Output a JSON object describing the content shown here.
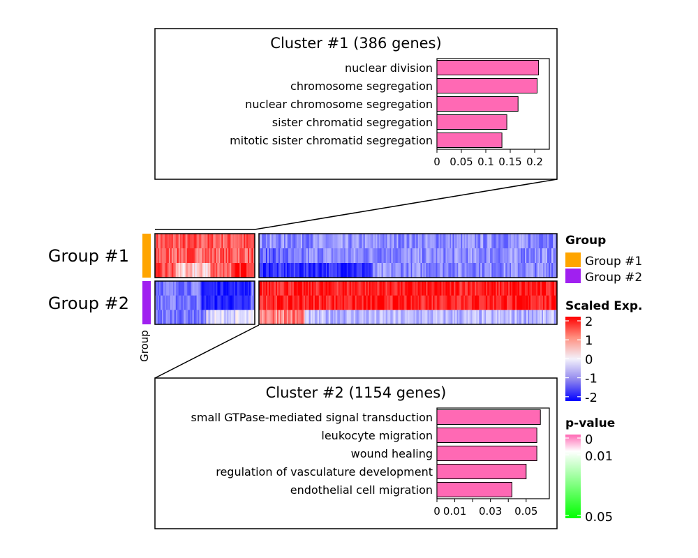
{
  "colors": {
    "group1": "#FFA500",
    "group2": "#A020F0",
    "bar": "#FF69B4",
    "high": "#FF0000",
    "mid": "#FFFFFF",
    "low": "#0000FF",
    "pvalue_low": "#FF69B4",
    "pvalue_high": "#00FF00"
  },
  "heatmap": {
    "row_labels": [
      "Group #1",
      "Group #2"
    ],
    "annotation_axis_label": "Group"
  },
  "legends": {
    "group": {
      "title": "Group",
      "items": [
        {
          "label": "Group #1",
          "color": "#FFA500"
        },
        {
          "label": "Group #2",
          "color": "#A020F0"
        }
      ]
    },
    "scaled_exp": {
      "title": "Scaled Exp.",
      "ticks": [
        "2",
        "1",
        "0",
        "-1",
        "-2"
      ]
    },
    "pvalue": {
      "title": "p-value",
      "ticks": [
        "0",
        "0.01",
        "0.05"
      ]
    }
  },
  "chart_data": [
    {
      "type": "bar",
      "orientation": "horizontal",
      "title": "Cluster #1 (386 genes)",
      "categories": [
        "nuclear division",
        "chromosome segregation",
        "nuclear chromosome segregation",
        "sister chromatid segregation",
        "mitotic sister chromatid segregation"
      ],
      "values": [
        0.208,
        0.205,
        0.166,
        0.143,
        0.133
      ],
      "xlim": [
        0,
        0.23
      ],
      "xticks": [
        "0",
        "0.05",
        "0.1",
        "0.15",
        "0.2"
      ],
      "xtick_values": [
        0,
        0.05,
        0.1,
        0.15,
        0.2
      ]
    },
    {
      "type": "bar",
      "orientation": "horizontal",
      "title": "Cluster #2 (1154 genes)",
      "categories": [
        "small GTPase-mediated signal transduction",
        "leukocyte migration",
        "wound healing",
        "regulation of vasculature development",
        "endothelial cell migration"
      ],
      "values": [
        0.058,
        0.056,
        0.056,
        0.05,
        0.042
      ],
      "xlim": [
        0,
        0.063
      ],
      "xticks": [
        "0",
        "0.01",
        "0.03",
        "0.05"
      ],
      "xtick_values": [
        0,
        0.01,
        0.03,
        0.05
      ],
      "minor_tick_values": [
        0.02,
        0.04
      ]
    }
  ]
}
